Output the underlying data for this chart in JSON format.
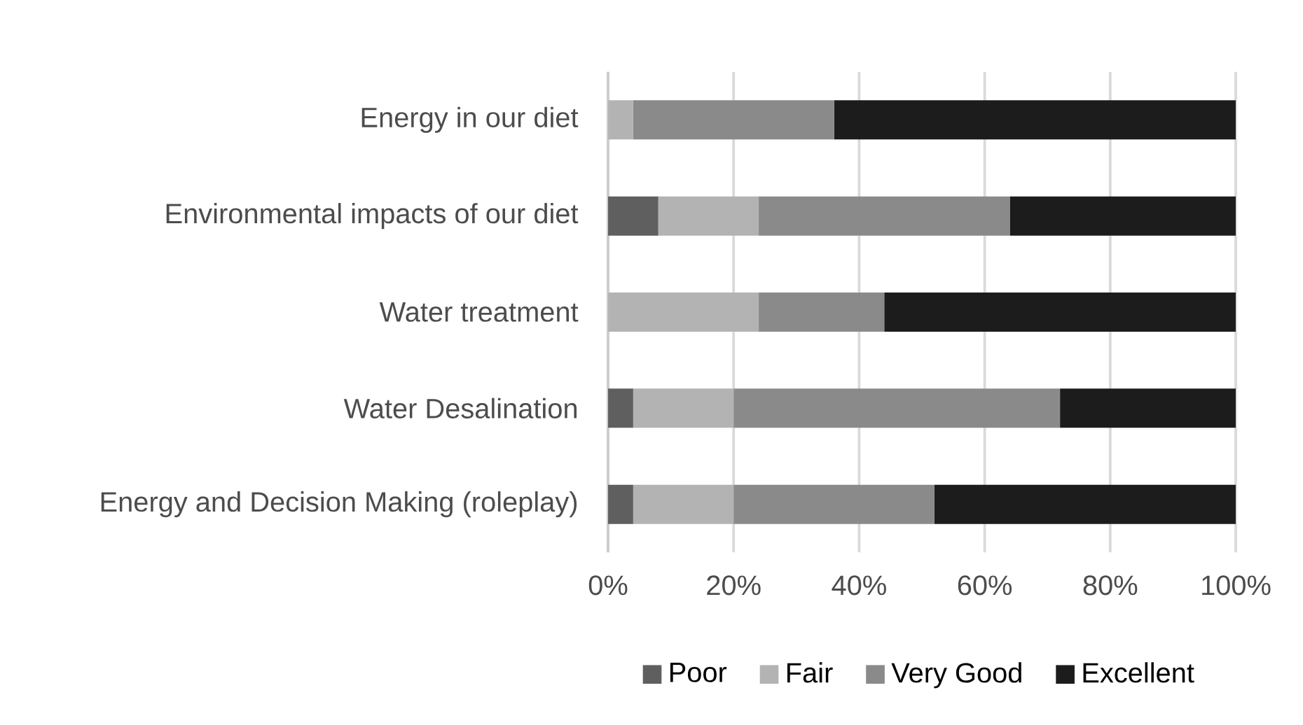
{
  "chart_data": {
    "type": "bar",
    "orientation": "horizontal",
    "stacked": true,
    "categories": [
      "Energy in our diet",
      "Environmental impacts of our diet",
      "Water treatment",
      "Water Desalination",
      "Energy and Decision Making (roleplay)"
    ],
    "series": [
      {
        "name": "Poor",
        "color": "#5f5f5f",
        "values": [
          0,
          8,
          0,
          4,
          4
        ]
      },
      {
        "name": "Fair",
        "color": "#b3b3b3",
        "values": [
          4,
          16,
          24,
          16,
          16
        ]
      },
      {
        "name": "Very Good",
        "color": "#8a8a8a",
        "values": [
          32,
          40,
          20,
          52,
          32
        ]
      },
      {
        "name": "Excellent",
        "color": "#1c1c1c",
        "values": [
          64,
          36,
          56,
          28,
          48
        ]
      }
    ],
    "xlim": [
      0,
      100
    ],
    "xticks": [
      {
        "value": 0,
        "label": "0%"
      },
      {
        "value": 20,
        "label": "20%"
      },
      {
        "value": 40,
        "label": "40%"
      },
      {
        "value": 60,
        "label": "60%"
      },
      {
        "value": 80,
        "label": "80%"
      },
      {
        "value": 100,
        "label": "100%"
      }
    ],
    "grid": "x",
    "legend": "bottom"
  }
}
